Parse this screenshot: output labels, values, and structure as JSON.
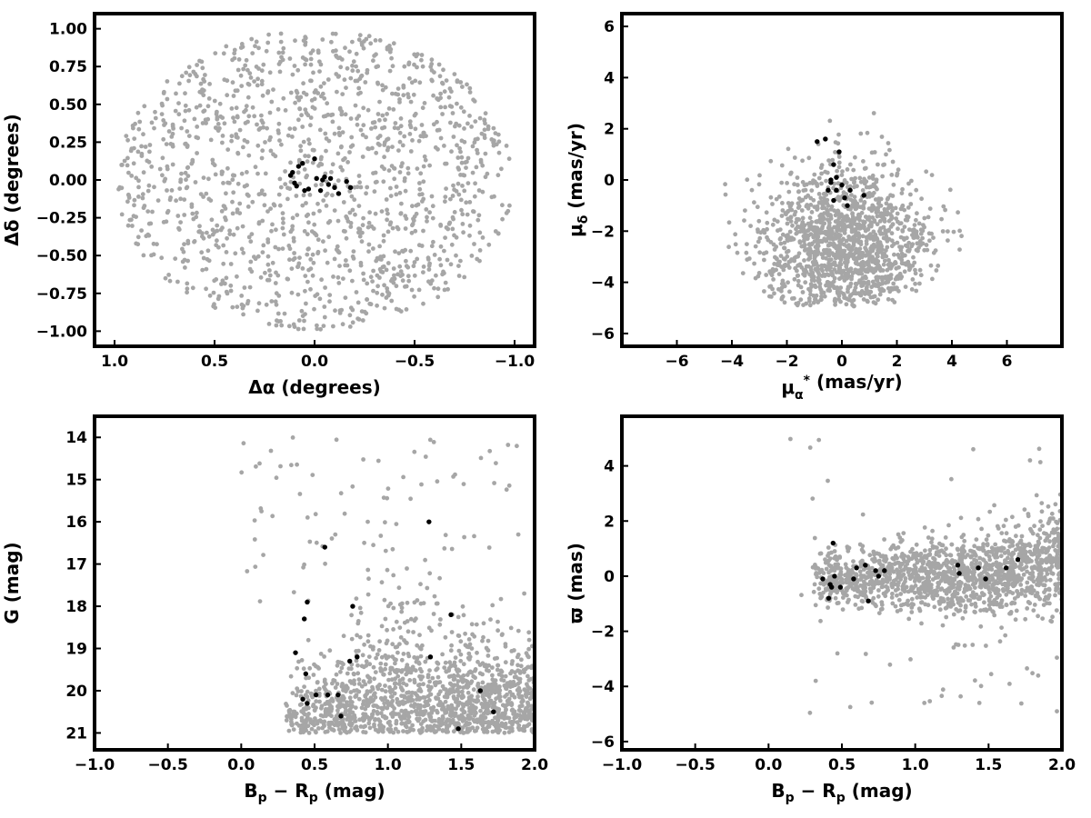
{
  "colors": {
    "field": "#a6a6a6",
    "members": "#000000",
    "frame": "#000000",
    "background": "#ffffff"
  },
  "chart_data": [
    {
      "type": "scatter",
      "xlabel": "Δα (degrees)",
      "ylabel": "Δδ (degrees)",
      "xlim": [
        1.1,
        -1.1
      ],
      "ylim": [
        -1.1,
        1.1
      ],
      "x_inverted": true,
      "xticks": [
        1.0,
        0.5,
        0.0,
        -0.5,
        -1.0
      ],
      "xtick_labels": [
        "1.0",
        "0.5",
        "0.0",
        "−0.5",
        "−1.0"
      ],
      "yticks": [
        -1.0,
        -0.75,
        -0.5,
        -0.25,
        0.0,
        0.25,
        0.5,
        0.75,
        1.0
      ],
      "ytick_labels": [
        "−1.00",
        "−0.75",
        "−0.50",
        "−0.25",
        "0.00",
        "0.25",
        "0.50",
        "0.75",
        "1.00"
      ],
      "grid": false,
      "field_points": {
        "count": 1400,
        "distribution": "uniform disk, radius 1.0 deg, centered (0, 0)"
      },
      "series": [
        {
          "x": [
            0.12,
            0.1,
            0.08,
            0.06,
            0.03,
            -0.01,
            -0.03,
            -0.05,
            -0.07,
            -0.1,
            -0.12,
            -0.18,
            0.11,
            0.09,
            0.05,
            0.0,
            -0.04,
            -0.08,
            -0.16
          ],
          "y": [
            0.03,
            -0.02,
            0.09,
            0.11,
            -0.06,
            0.01,
            -0.07,
            0.02,
            -0.03,
            -0.05,
            -0.09,
            -0.05,
            0.05,
            -0.04,
            -0.07,
            0.14,
            0.0,
            0.01,
            -0.01
          ]
        }
      ]
    },
    {
      "type": "scatter",
      "xlabel": "μα* (mas/yr)",
      "ylabel": "μδ (mas/yr)",
      "xlim": [
        -8,
        8
      ],
      "ylim": [
        -6.5,
        6.5
      ],
      "xticks": [
        -6,
        -4,
        -2,
        0,
        2,
        4,
        6
      ],
      "xtick_labels": [
        "−6",
        "−4",
        "−2",
        "0",
        "2",
        "4",
        "6"
      ],
      "yticks": [
        -6,
        -4,
        -2,
        0,
        2,
        4,
        6
      ],
      "ytick_labels": [
        "−6",
        "−4",
        "−2",
        "0",
        "2",
        "4",
        "6"
      ],
      "grid": false,
      "field_points": {
        "count": 1400,
        "distribution": "concentrated near (0, -3), spread to radius ~5 mas/yr"
      },
      "series": [
        {
          "x": [
            -0.3,
            -0.1,
            -0.6,
            -0.4,
            0.0,
            -0.2,
            0.3,
            0.8,
            -0.5,
            0.2,
            -0.2,
            -0.9,
            -0.3,
            0.1,
            -0.4
          ],
          "y": [
            0.6,
            1.1,
            1.6,
            0.0,
            -0.2,
            -0.4,
            -0.4,
            -0.6,
            -0.4,
            -1.0,
            0.1,
            1.5,
            -0.8,
            -0.7,
            -0.1
          ]
        }
      ]
    },
    {
      "type": "scatter",
      "xlabel": "Bp − Rp (mag)",
      "ylabel": "G (mag)",
      "xlim": [
        -1.0,
        2.0
      ],
      "ylim": [
        21.4,
        13.5
      ],
      "y_inverted": true,
      "xticks": [
        -1.0,
        -0.5,
        0.0,
        0.5,
        1.0,
        1.5,
        2.0
      ],
      "xtick_labels": [
        "−1.0",
        "−0.5",
        "0.0",
        "0.5",
        "1.0",
        "1.5",
        "2.0"
      ],
      "yticks": [
        14,
        15,
        16,
        17,
        18,
        19,
        20,
        21
      ],
      "ytick_labels": [
        "14",
        "15",
        "16",
        "17",
        "18",
        "19",
        "20",
        "21"
      ],
      "grid": false,
      "field_points": {
        "count": 1500,
        "distribution": "mostly Bp−Rp 0.3–2.0, G 18–21; sparse brighter stars"
      },
      "series": [
        {
          "x": [
            0.42,
            0.45,
            0.51,
            0.59,
            0.66,
            0.68,
            0.44,
            0.37,
            0.43,
            0.45,
            0.74,
            0.79,
            0.76,
            0.57,
            1.48,
            1.63,
            1.72,
            1.29,
            1.43,
            1.28
          ],
          "y": [
            20.2,
            20.3,
            20.1,
            20.1,
            20.1,
            20.6,
            19.6,
            19.1,
            18.3,
            17.9,
            19.3,
            19.2,
            18.0,
            16.6,
            20.9,
            20.0,
            20.5,
            19.2,
            18.2,
            16.0
          ]
        }
      ]
    },
    {
      "type": "scatter",
      "xlabel": "Bp − Rp (mag)",
      "ylabel": "ϖ (mas)",
      "xlim": [
        -1.0,
        2.0
      ],
      "ylim": [
        -6.3,
        5.8
      ],
      "xticks": [
        -1.0,
        -0.5,
        0.0,
        0.5,
        1.0,
        1.5,
        2.0
      ],
      "xtick_labels": [
        "−1.0",
        "−0.5",
        "0.0",
        "0.5",
        "1.0",
        "1.5",
        "2.0"
      ],
      "yticks": [
        -6,
        -4,
        -2,
        0,
        2,
        4
      ],
      "ytick_labels": [
        "−6",
        "−4",
        "−2",
        "0",
        "2",
        "4"
      ],
      "grid": false,
      "field_points": {
        "count": 1500,
        "distribution": "Bp−Rp 0.3–2.0, parallax near 0 (rising to ~0.8 at red end), wider scatter for faint stars"
      },
      "series": [
        {
          "x": [
            0.37,
            0.41,
            0.42,
            0.43,
            0.44,
            0.45,
            0.49,
            0.58,
            0.6,
            0.66,
            0.68,
            0.73,
            0.75,
            0.79,
            1.29,
            1.3,
            1.43,
            1.48,
            1.62,
            1.7
          ],
          "y": [
            -0.1,
            -0.8,
            -0.3,
            -0.4,
            1.2,
            0.0,
            -0.4,
            -0.1,
            0.3,
            0.4,
            -0.9,
            0.2,
            0.0,
            0.2,
            0.4,
            0.1,
            0.3,
            -0.1,
            0.3,
            0.6
          ]
        }
      ]
    }
  ]
}
